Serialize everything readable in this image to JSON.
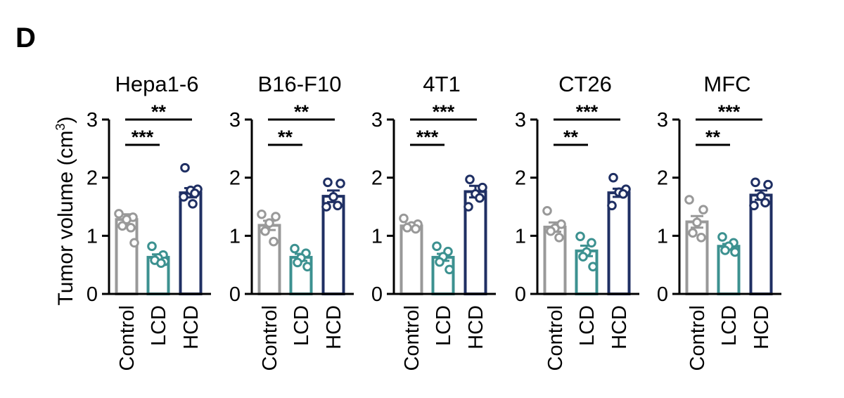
{
  "panel_label": "D",
  "y_axis_label": {
    "text": "Tumor volume (cm",
    "superscript": "3",
    "suffix": ")"
  },
  "colors": {
    "Control": "#999999",
    "LCD": "#3c9190",
    "HCD": "#1f2f63",
    "axis": "#000000"
  },
  "chart_data": [
    {
      "type": "bar",
      "title": "Hepa1-6",
      "categories": [
        "Control",
        "LCD",
        "HCD"
      ],
      "values": [
        1.28,
        0.63,
        1.74
      ],
      "errors": [
        0.09,
        0.05,
        0.08
      ],
      "points": [
        [
          1.38,
          1.32,
          1.28,
          1.17,
          1.14,
          0.88
        ],
        [
          0.82,
          0.67,
          0.62,
          0.58,
          0.56,
          0.53
        ],
        [
          2.17,
          1.8,
          1.78,
          1.73,
          1.67,
          1.55
        ]
      ],
      "ylim": [
        0,
        3
      ],
      "yticks": [
        "0",
        "1",
        "2",
        "3"
      ],
      "xlabel": "",
      "ylabel": "Tumor volume (cm3)",
      "significance": [
        {
          "from": 0,
          "to": 2,
          "label": "**"
        },
        {
          "from": 0,
          "to": 1,
          "label": "***"
        }
      ]
    },
    {
      "type": "bar",
      "title": "B16-F10",
      "categories": [
        "Control",
        "LCD",
        "HCD"
      ],
      "values": [
        1.18,
        0.63,
        1.68
      ],
      "errors": [
        0.08,
        0.06,
        0.1
      ],
      "points": [
        [
          1.37,
          1.33,
          1.22,
          1.08,
          0.9
        ],
        [
          0.78,
          0.7,
          0.62,
          0.54,
          0.47
        ],
        [
          1.92,
          1.9,
          1.67,
          1.52,
          1.5
        ]
      ],
      "ylim": [
        0,
        3
      ],
      "yticks": [
        "0",
        "1",
        "2",
        "3"
      ],
      "xlabel": "",
      "ylabel": "Tumor volume (cm3)",
      "significance": [
        {
          "from": 0,
          "to": 2,
          "label": "**"
        },
        {
          "from": 0,
          "to": 1,
          "label": "**"
        }
      ]
    },
    {
      "type": "bar",
      "title": "4T1",
      "categories": [
        "Control",
        "LCD",
        "HCD"
      ],
      "values": [
        1.17,
        0.63,
        1.76
      ],
      "errors": [
        0.04,
        0.06,
        0.1
      ],
      "points": [
        [
          1.3,
          1.2,
          1.17,
          1.14,
          1.12
        ],
        [
          0.82,
          0.73,
          0.64,
          0.55,
          0.42
        ],
        [
          1.97,
          1.83,
          1.72,
          1.65,
          1.5
        ]
      ],
      "ylim": [
        0,
        3
      ],
      "yticks": [
        "0",
        "1",
        "2",
        "3"
      ],
      "xlabel": "",
      "ylabel": "Tumor volume (cm3)",
      "significance": [
        {
          "from": 0,
          "to": 2,
          "label": "***"
        },
        {
          "from": 0,
          "to": 1,
          "label": "***"
        }
      ]
    },
    {
      "type": "bar",
      "title": "CT26",
      "categories": [
        "Control",
        "LCD",
        "HCD"
      ],
      "values": [
        1.15,
        0.74,
        1.74
      ],
      "errors": [
        0.08,
        0.09,
        0.07
      ],
      "points": [
        [
          1.43,
          1.2,
          1.13,
          1.08,
          0.97
        ],
        [
          0.99,
          0.88,
          0.72,
          0.64,
          0.47
        ],
        [
          2.0,
          1.8,
          1.75,
          1.72,
          1.52
        ]
      ],
      "ylim": [
        0,
        3
      ],
      "yticks": [
        "0",
        "1",
        "2",
        "3"
      ],
      "xlabel": "",
      "ylabel": "Tumor volume (cm3)",
      "significance": [
        {
          "from": 0,
          "to": 2,
          "label": "***"
        },
        {
          "from": 0,
          "to": 1,
          "label": "**"
        }
      ]
    },
    {
      "type": "bar",
      "title": "MFC",
      "categories": [
        "Control",
        "LCD",
        "HCD"
      ],
      "values": [
        1.24,
        0.82,
        1.7
      ],
      "errors": [
        0.1,
        0.04,
        0.08
      ],
      "points": [
        [
          1.62,
          1.45,
          1.23,
          1.05,
          0.97
        ],
        [
          0.98,
          0.88,
          0.82,
          0.75,
          0.72
        ],
        [
          1.92,
          1.88,
          1.68,
          1.57,
          1.52
        ]
      ],
      "ylim": [
        0,
        3
      ],
      "yticks": [
        "0",
        "1",
        "2",
        "3"
      ],
      "xlabel": "",
      "ylabel": "Tumor volume (cm3)",
      "significance": [
        {
          "from": 0,
          "to": 2,
          "label": "***"
        },
        {
          "from": 0,
          "to": 1,
          "label": "**"
        }
      ]
    }
  ]
}
